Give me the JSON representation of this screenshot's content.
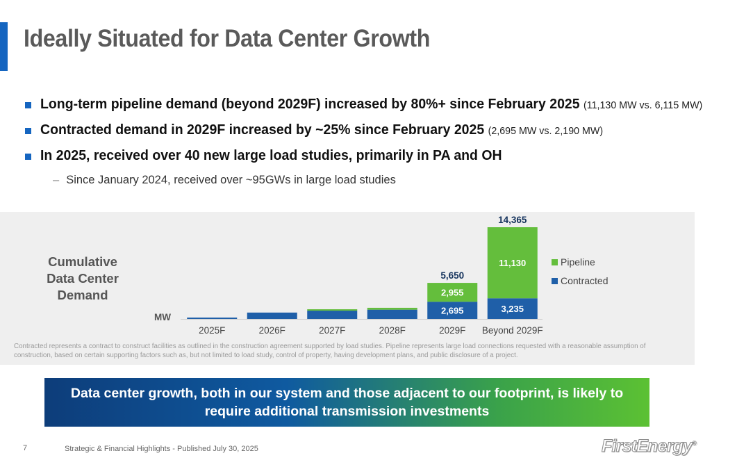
{
  "title": "Ideally Situated for Data Center Growth",
  "bullets": [
    {
      "main": "Long-term pipeline demand (beyond 2029F) increased by 80%+ since February 2025",
      "paren": "(11,130 MW vs. 6,115 MW)"
    },
    {
      "main": "Contracted demand in 2029F increased by ~25% since February 2025",
      "paren": "(2,695 MW vs. 2,190 MW)"
    },
    {
      "main": "In 2025, received over 40 new large load studies, primarily in PA and OH",
      "paren": ""
    }
  ],
  "sub_bullet": "Since January 2024, received over ~95GWs in large load studies",
  "chart_label": [
    "Cumulative",
    "Data Center",
    "Demand"
  ],
  "chart_data": {
    "type": "bar",
    "stacked": true,
    "categories": [
      "2025F",
      "2026F",
      "2027F",
      "2028F",
      "2029F",
      "Beyond 2029F"
    ],
    "series": [
      {
        "name": "Contracted",
        "values": [
          130,
          1000,
          1300,
          1450,
          2695,
          3235
        ],
        "color": "#1f5fa8"
      },
      {
        "name": "Pipeline",
        "values": [
          0,
          0,
          150,
          300,
          2955,
          11130
        ],
        "color": "#64be3c"
      }
    ],
    "data_labels": {
      "Contracted": [
        "",
        "",
        "",
        "",
        "2,695",
        "3,235"
      ],
      "Pipeline": [
        "",
        "",
        "",
        "",
        "2,955",
        "11,130"
      ]
    },
    "totals": [
      "",
      "",
      "",
      "",
      "5,650",
      "14,365"
    ],
    "ylabel": "MW",
    "ylim": [
      0,
      14365
    ],
    "legend": "right",
    "grid": false
  },
  "footnote": "Contracted represents a contract to construct facilities as outlined in the construction agreement supported by load studies. Pipeline represents large load connections requested with a reasonable assumption of construction, based on certain supporting factors such as, but not limited to load study, control of property, having development plans, and public disclosure of a project.",
  "banner": "Data center growth, both in our system and those adjacent to our footprint, is likely to require additional transmission investments",
  "footer": {
    "page": "7",
    "text": "Strategic & Financial Highlights - Published July 30, 2025",
    "logo": "FirstEnergy",
    "logo_mark": "®"
  }
}
